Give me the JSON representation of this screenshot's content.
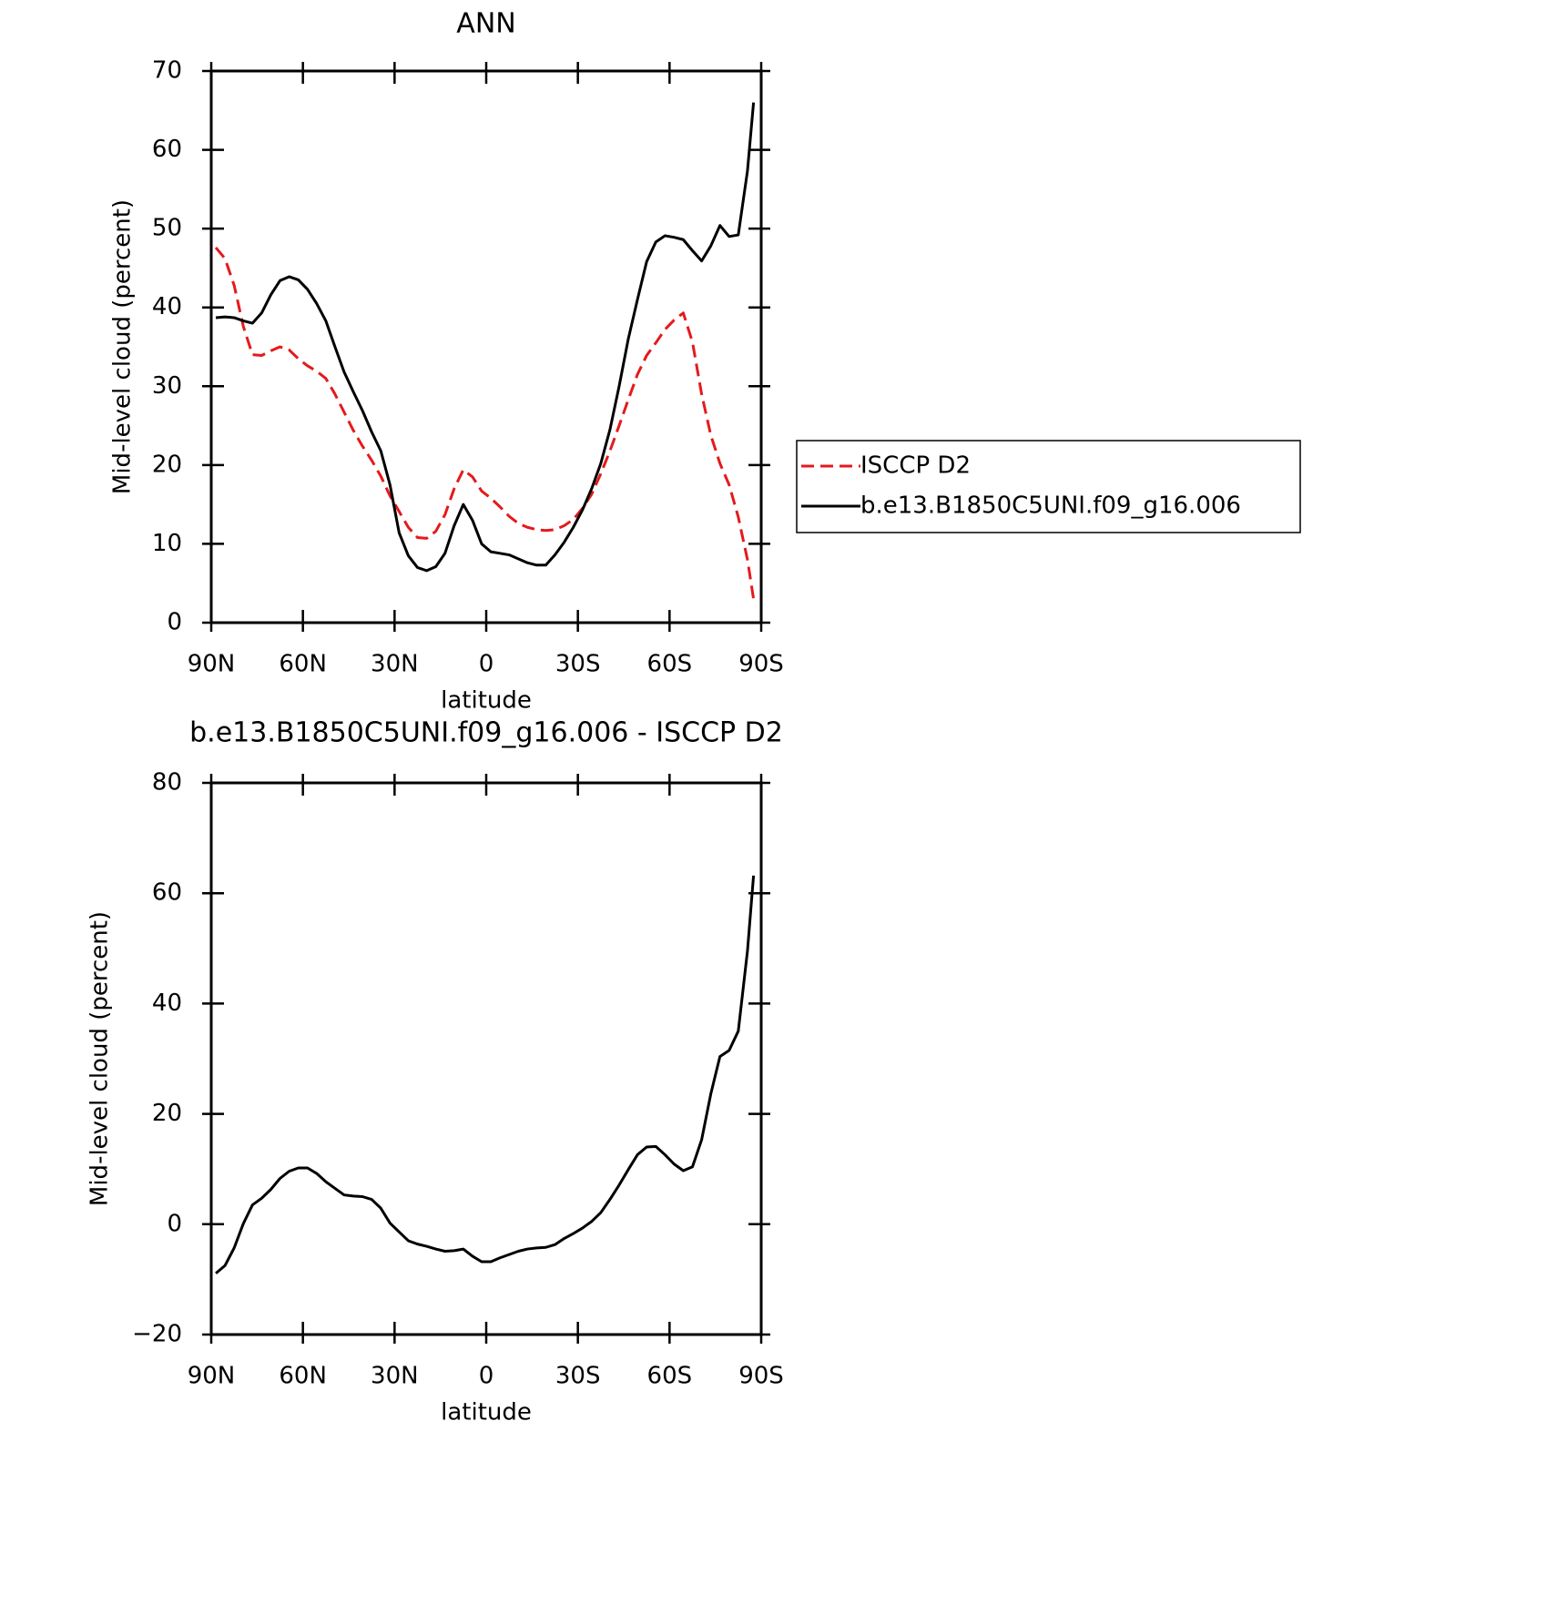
{
  "chart_data": [
    {
      "type": "line",
      "title": "ANN",
      "xlabel": "latitude",
      "ylabel": "Mid-level cloud (percent)",
      "x": [
        88.5,
        85.5,
        82.5,
        79.5,
        76.5,
        73.5,
        70.5,
        67.5,
        64.5,
        61.5,
        58.5,
        55.5,
        52.5,
        49.5,
        46.5,
        43.5,
        40.5,
        37.5,
        34.5,
        31.5,
        28.5,
        25.5,
        22.5,
        19.5,
        16.5,
        13.5,
        10.5,
        7.5,
        4.5,
        1.5,
        -1.5,
        -4.5,
        -7.5,
        -10.5,
        -13.5,
        -16.5,
        -19.5,
        -22.5,
        -25.5,
        -28.5,
        -31.5,
        -34.5,
        -37.5,
        -40.5,
        -43.5,
        -46.5,
        -49.5,
        -52.5,
        -55.5,
        -58.5,
        -61.5,
        -64.5,
        -67.5,
        -70.5,
        -73.5,
        -76.5,
        -79.5,
        -82.5,
        -85.5,
        -87.5
      ],
      "xlim": [
        90,
        -90
      ],
      "xticks": [
        {
          "value": 90,
          "label": "90N"
        },
        {
          "value": 60,
          "label": "60N"
        },
        {
          "value": 30,
          "label": "30N"
        },
        0,
        {
          "value": -30,
          "label": "30S"
        },
        {
          "value": -60,
          "label": "60S"
        },
        {
          "value": -90,
          "label": "90S"
        }
      ],
      "ylim": [
        0,
        70
      ],
      "yticks": [
        0,
        10,
        20,
        30,
        40,
        50,
        60,
        70
      ],
      "legend": "outside right",
      "series": [
        {
          "name": "ISCCP D2",
          "color": "#e41a1c",
          "linestyle": "dashed",
          "values": [
            47.6,
            46.2,
            42.8,
            37.6,
            34,
            33.9,
            34.5,
            35,
            34.6,
            33.5,
            32.6,
            31.9,
            31,
            29,
            26.7,
            24.4,
            22.4,
            20.6,
            18.6,
            16.1,
            14.1,
            12.1,
            10.8,
            10.7,
            11.6,
            13.7,
            17,
            19.4,
            18.5,
            16.7,
            15.8,
            14.7,
            13.5,
            12.6,
            12.1,
            11.8,
            11.7,
            11.8,
            12.3,
            13.1,
            14.5,
            16.3,
            18.9,
            21.8,
            25,
            28.3,
            31.5,
            33.9,
            35.5,
            37.2,
            38.4,
            39.3,
            35.6,
            29,
            23.8,
            20.2,
            17.5,
            13.4,
            8,
            3
          ]
        },
        {
          "name": "b.e13.B1850C5UNI.f09_g16.006",
          "color": "#000000",
          "linestyle": "solid",
          "values": [
            38.7,
            38.8,
            38.7,
            38.3,
            38,
            39.3,
            41.6,
            43.4,
            43.9,
            43.5,
            42.3,
            40.5,
            38.3,
            35,
            31.8,
            29.3,
            26.9,
            24.2,
            21.8,
            17.5,
            11.4,
            8.5,
            7,
            6.6,
            7.1,
            8.8,
            12.3,
            15,
            13,
            10,
            9,
            8.8,
            8.6,
            8.1,
            7.6,
            7.3,
            7.3,
            8.6,
            10.2,
            12.1,
            14.3,
            17,
            20.2,
            24.5,
            30,
            36,
            41,
            45.8,
            48.3,
            49.1,
            48.9,
            48.6,
            47.2,
            45.9,
            47.8,
            50.4,
            49,
            49.2,
            57.3,
            66
          ]
        }
      ]
    },
    {
      "type": "line",
      "title": "b.e13.B1850C5UNI.f09_g16.006 - ISCCP D2",
      "xlabel": "latitude",
      "ylabel": "Mid-level cloud (percent)",
      "x": [
        88.5,
        85.5,
        82.5,
        79.5,
        76.5,
        73.5,
        70.5,
        67.5,
        64.5,
        61.5,
        58.5,
        55.5,
        52.5,
        49.5,
        46.5,
        43.5,
        40.5,
        37.5,
        34.5,
        31.5,
        28.5,
        25.5,
        22.5,
        19.5,
        16.5,
        13.5,
        10.5,
        7.5,
        4.5,
        1.5,
        -1.5,
        -4.5,
        -7.5,
        -10.5,
        -13.5,
        -16.5,
        -19.5,
        -22.5,
        -25.5,
        -28.5,
        -31.5,
        -34.5,
        -37.5,
        -40.5,
        -43.5,
        -46.5,
        -49.5,
        -52.5,
        -55.5,
        -58.5,
        -61.5,
        -64.5,
        -67.5,
        -70.5,
        -73.5,
        -76.5,
        -79.5,
        -82.5,
        -85.5,
        -87.5
      ],
      "xlim": [
        90,
        -90
      ],
      "xticks": [
        {
          "value": 90,
          "label": "90N"
        },
        {
          "value": 60,
          "label": "60N"
        },
        {
          "value": 30,
          "label": "30N"
        },
        0,
        {
          "value": -30,
          "label": "30S"
        },
        {
          "value": -60,
          "label": "60S"
        },
        {
          "value": -90,
          "label": "90S"
        }
      ],
      "ylim": [
        -20,
        80
      ],
      "yticks": [
        {
          "value": -20,
          "label": "−20"
        },
        0,
        20,
        40,
        60,
        80
      ],
      "series": [
        {
          "color": "#000000",
          "linestyle": "solid",
          "values": [
            -8.9,
            -7.5,
            -4.3,
            0.1,
            3.5,
            4.7,
            6.3,
            8.3,
            9.6,
            10.2,
            10.2,
            9.2,
            7.7,
            6.5,
            5.3,
            5.1,
            5,
            4.5,
            2.9,
            0.2,
            -1.4,
            -3,
            -3.6,
            -4,
            -4.5,
            -4.9,
            -4.8,
            -4.5,
            -5.8,
            -6.8,
            -6.8,
            -6.1,
            -5.5,
            -4.9,
            -4.5,
            -4.3,
            -4.2,
            -3.7,
            -2.6,
            -1.7,
            -0.7,
            0.5,
            2.1,
            4.5,
            7.1,
            9.9,
            12.6,
            14,
            14.1,
            12.6,
            10.9,
            9.7,
            10.4,
            15.3,
            23.6,
            30.4,
            31.5,
            35,
            49.5,
            63.2
          ]
        }
      ]
    }
  ]
}
